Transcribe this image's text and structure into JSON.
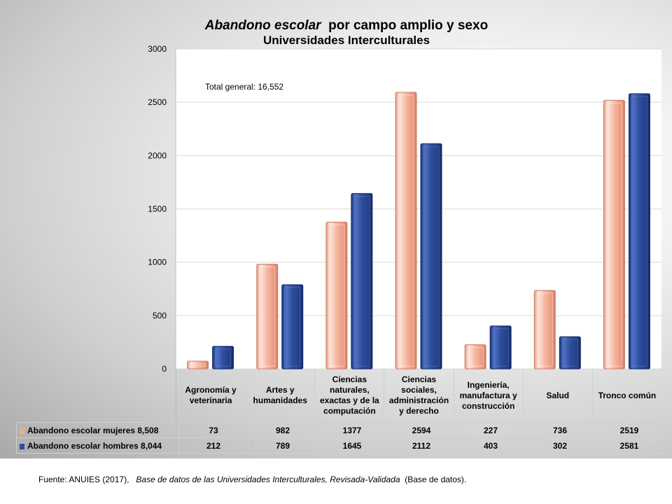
{
  "title": {
    "italic_part": "Abandono escolar",
    "rest_part": "por campo amplio y sexo",
    "line2": "Universidades Interculturales"
  },
  "annotation": "Total general: 16,552",
  "source": {
    "prefix": "Fuente: ANUIES (2017),",
    "italic": "Base de datos de las Universidades  Interculturales, Revisada-Validada",
    "suffix": "(Base de datos)."
  },
  "colors": {
    "mujeres": "#f2a98f",
    "hombres": "#2e4e9c"
  },
  "chart_data": {
    "type": "bar",
    "categories": [
      "Agronomía y veterinaria",
      "Artes y humanidades",
      "Ciencias naturales, exactas y de la computación",
      "Ciencias sociales, administración y derecho",
      "Ingeniería, manufactura y construcción",
      "Salud",
      "Tronco común"
    ],
    "series": [
      {
        "name": "Abandono escolar mujeres  8,508",
        "values": [
          73,
          982,
          1377,
          2594,
          227,
          736,
          2519
        ]
      },
      {
        "name": "Abandono escolar hombres  8,044",
        "values": [
          212,
          789,
          1645,
          2112,
          403,
          302,
          2581
        ]
      }
    ],
    "ylim": [
      0,
      3000
    ],
    "yticks": [
      0,
      500,
      1000,
      1500,
      2000,
      2500,
      3000
    ],
    "grid": true,
    "legend": "data-table"
  }
}
